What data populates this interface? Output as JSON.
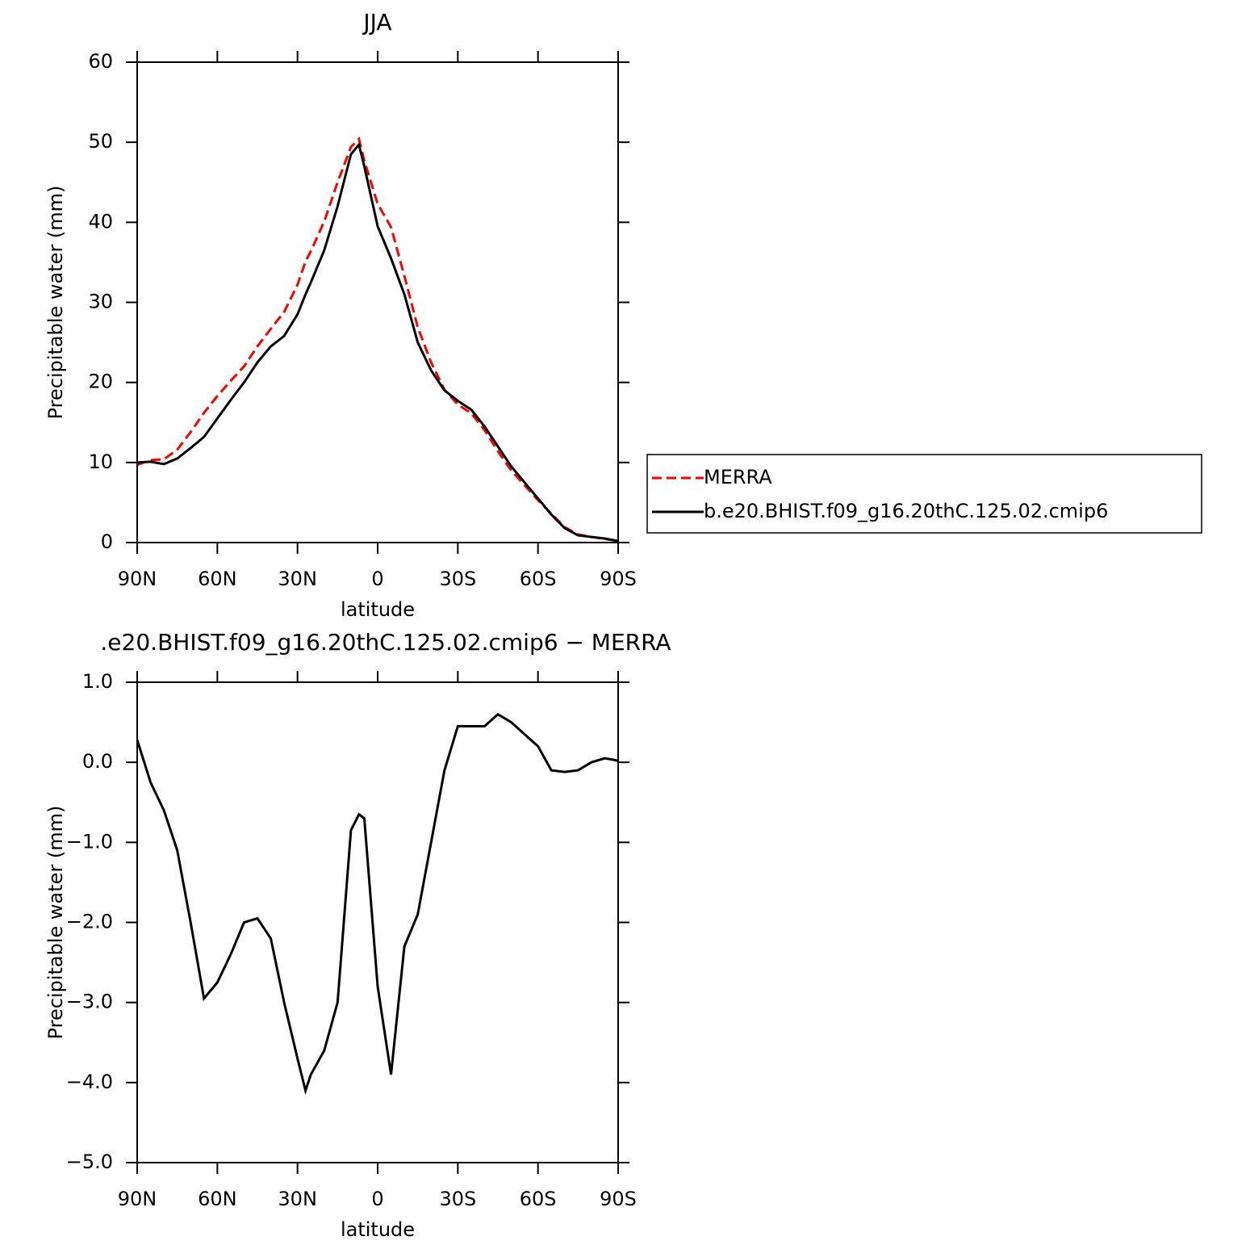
{
  "chart_data": [
    {
      "type": "line",
      "title": "JJA",
      "xlabel": "latitude",
      "ylabel": "Precipitable water (mm)",
      "x": [
        90,
        85,
        80,
        75,
        70,
        65,
        60,
        55,
        50,
        45,
        40,
        35,
        30,
        27,
        25,
        20,
        15,
        10,
        7,
        5,
        0,
        -5,
        -10,
        -15,
        -20,
        -25,
        -30,
        -35,
        -40,
        -45,
        -50,
        -55,
        -60,
        -65,
        -70,
        -75,
        -80,
        -85,
        -90
      ],
      "series": [
        {
          "name": "MERRA",
          "color": "#ff0000",
          "dash": true,
          "values": [
            9.7,
            10.3,
            10.4,
            11.6,
            13.8,
            16.2,
            18.3,
            20.2,
            22,
            24.5,
            26.7,
            28.8,
            32.2,
            35.1,
            36.4,
            40.1,
            45,
            49.4,
            50.4,
            47.7,
            42.3,
            39.4,
            33.3,
            26.9,
            22.5,
            19.1,
            17.25,
            16.15,
            14.05,
            11.4,
            9,
            7.15,
            5.3,
            3.6,
            1.92,
            1.0,
            0.7,
            0.45,
            0.18
          ]
        },
        {
          "name": "b.e20.BHIST.f09_g16.20thC.125.02.cmip6",
          "color": "#000000",
          "dash": false,
          "values": [
            10,
            10.1,
            9.8,
            10.5,
            11.8,
            13.2,
            15.5,
            17.8,
            20,
            22.5,
            24.5,
            25.8,
            28.5,
            31,
            32.5,
            36.5,
            42,
            48.5,
            49.7,
            47,
            39.5,
            35.5,
            31,
            25,
            21.5,
            19,
            17.7,
            16.6,
            14.5,
            12,
            9.5,
            7.5,
            5.5,
            3.5,
            1.8,
            0.9,
            0.7,
            0.5,
            0.2
          ]
        }
      ],
      "xlim": [
        90,
        -90
      ],
      "xticks": [
        {
          "value": 90,
          "label": "90N"
        },
        {
          "value": 60,
          "label": "60N"
        },
        {
          "value": 30,
          "label": "30N"
        },
        0,
        {
          "value": -30,
          "label": "30S"
        },
        {
          "value": -60,
          "label": "60S"
        },
        {
          "value": -90,
          "label": "90S"
        }
      ],
      "ylim": [
        0,
        60
      ],
      "yticks": [
        0,
        10,
        20,
        30,
        40,
        50,
        60
      ],
      "legend": "right"
    },
    {
      "type": "line",
      "title": ".e20.BHIST.f09_g16.20thC.125.02.cmip6 − MERRA",
      "xlabel": "latitude",
      "ylabel": "Precipitable water (mm)",
      "x": [
        90,
        85,
        80,
        75,
        70,
        65,
        60,
        55,
        50,
        45,
        40,
        35,
        30,
        27,
        25,
        20,
        15,
        10,
        7,
        5,
        0,
        -5,
        -10,
        -15,
        -20,
        -25,
        -30,
        -35,
        -40,
        -45,
        -50,
        -55,
        -60,
        -65,
        -70,
        -75,
        -80,
        -85,
        -90
      ],
      "series": [
        {
          "color": "#000000",
          "dash": false,
          "values": [
            0.28,
            -0.25,
            -0.6,
            -1.1,
            -2.0,
            -2.95,
            -2.75,
            -2.4,
            -2.0,
            -1.95,
            -2.2,
            -3.0,
            -3.7,
            -4.1,
            -3.9,
            -3.6,
            -3.0,
            -0.85,
            -0.65,
            -0.7,
            -2.8,
            -3.9,
            -2.3,
            -1.9,
            -1.0,
            -0.1,
            0.45,
            0.45,
            0.45,
            0.6,
            0.5,
            0.35,
            0.2,
            -0.1,
            -0.12,
            -0.1,
            0.0,
            0.05,
            0.02
          ]
        }
      ],
      "xlim": [
        90,
        -90
      ],
      "xticks": [
        {
          "value": 90,
          "label": "90N"
        },
        {
          "value": 60,
          "label": "60N"
        },
        {
          "value": 30,
          "label": "30N"
        },
        0,
        {
          "value": -30,
          "label": "30S"
        },
        {
          "value": -60,
          "label": "60S"
        },
        {
          "value": -90,
          "label": "90S"
        }
      ],
      "ylim": [
        -5,
        1
      ],
      "yticks": [
        {
          "value": -5,
          "label": "−5.0"
        },
        {
          "value": -4,
          "label": "−4.0"
        },
        {
          "value": -3,
          "label": "−3.0"
        },
        {
          "value": -2,
          "label": "−2.0"
        },
        {
          "value": -1,
          "label": "−1.0"
        },
        {
          "value": 0,
          "label": "0.0"
        },
        {
          "value": 1,
          "label": "1.0"
        }
      ]
    }
  ]
}
